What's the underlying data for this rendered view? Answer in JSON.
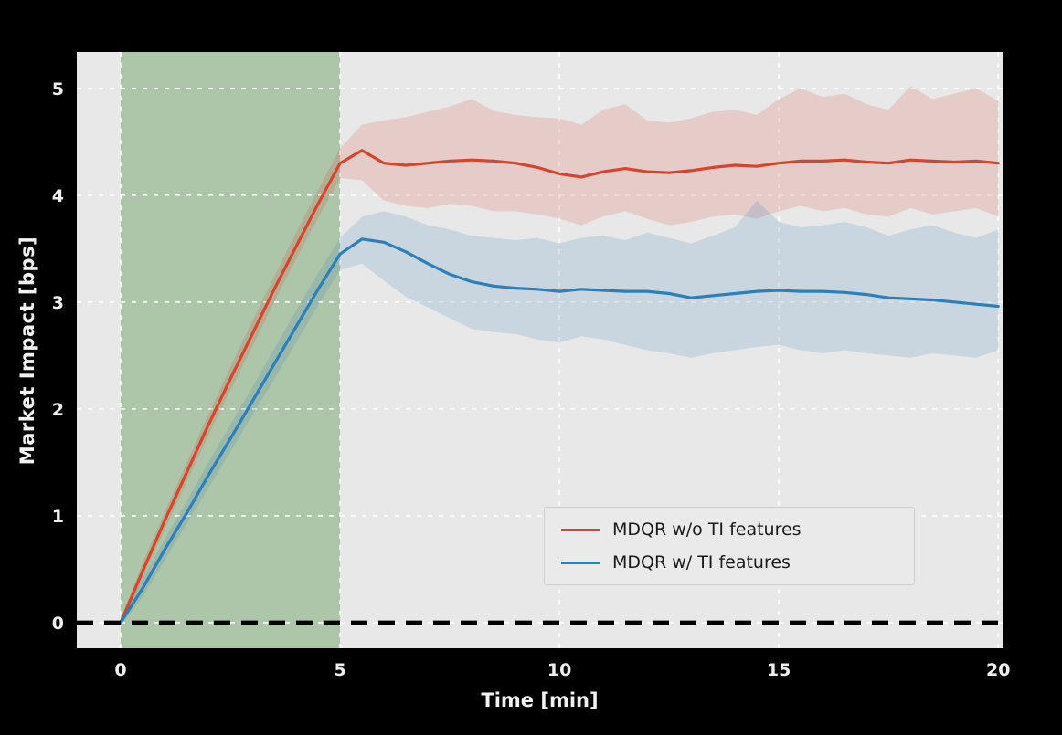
{
  "chart_data": {
    "type": "line",
    "title": "",
    "xlabel": "Time [min]",
    "ylabel": "Market Impact [bps]",
    "xlim": [
      -1,
      20.1
    ],
    "ylim": [
      -0.24,
      5.34
    ],
    "xticks": [
      0,
      5,
      10,
      15,
      20
    ],
    "yticks": [
      0,
      1,
      2,
      3,
      4,
      5
    ],
    "grid": true,
    "grid_color": "#ffffff",
    "plot_bg": "#e8e8e8",
    "fig_bg": "#000000",
    "text_color": "#f0f0f0",
    "legend_position": "lower right",
    "shaded_region": {
      "x0": 0,
      "x1": 5,
      "color": "#4d8b40",
      "opacity": 0.38
    },
    "zero_line": {
      "y": 0,
      "style": "dashed",
      "color": "#000000"
    },
    "x": [
      0,
      0.5,
      1,
      1.5,
      2,
      2.5,
      3,
      3.5,
      4,
      4.5,
      5,
      5.5,
      6,
      6.5,
      7,
      7.5,
      8,
      8.5,
      9,
      9.5,
      10,
      10.5,
      11,
      11.5,
      12,
      12.5,
      13,
      13.5,
      14,
      14.5,
      15,
      15.5,
      16,
      16.5,
      17,
      17.5,
      18,
      18.5,
      19,
      19.5,
      20
    ],
    "series": [
      {
        "name": "MDQR w/o TI features",
        "color": "#d7442e",
        "band_opacity": 0.17,
        "y": [
          0,
          0.48,
          0.95,
          1.4,
          1.85,
          2.28,
          2.7,
          3.12,
          3.52,
          3.92,
          4.3,
          4.42,
          4.3,
          4.28,
          4.3,
          4.32,
          4.33,
          4.32,
          4.3,
          4.26,
          4.2,
          4.17,
          4.22,
          4.25,
          4.22,
          4.21,
          4.23,
          4.26,
          4.28,
          4.27,
          4.3,
          4.32,
          4.32,
          4.33,
          4.31,
          4.3,
          4.33,
          4.32,
          4.31,
          4.32,
          4.3
        ],
        "band_upper": [
          0.03,
          0.56,
          1.03,
          1.49,
          1.95,
          2.39,
          2.82,
          3.24,
          3.65,
          4.05,
          4.44,
          4.66,
          4.7,
          4.73,
          4.78,
          4.83,
          4.9,
          4.79,
          4.75,
          4.73,
          4.72,
          4.66,
          4.8,
          4.85,
          4.7,
          4.68,
          4.72,
          4.78,
          4.8,
          4.75,
          4.9,
          5.0,
          4.92,
          4.95,
          4.85,
          4.8,
          5.02,
          4.9,
          4.95,
          5.0,
          4.88
        ],
        "band_lower": [
          -0.03,
          0.41,
          0.87,
          1.31,
          1.75,
          2.17,
          2.58,
          3.0,
          3.4,
          3.79,
          4.16,
          4.14,
          3.95,
          3.9,
          3.88,
          3.92,
          3.9,
          3.85,
          3.85,
          3.82,
          3.78,
          3.72,
          3.8,
          3.85,
          3.78,
          3.72,
          3.75,
          3.8,
          3.82,
          3.78,
          3.85,
          3.9,
          3.85,
          3.88,
          3.82,
          3.8,
          3.88,
          3.82,
          3.85,
          3.88,
          3.8
        ]
      },
      {
        "name": "MDQR w/ TI features",
        "color": "#2e7eb8",
        "band_opacity": 0.17,
        "y": [
          0,
          0.32,
          0.68,
          1.02,
          1.38,
          1.72,
          2.07,
          2.42,
          2.77,
          3.12,
          3.45,
          3.59,
          3.56,
          3.47,
          3.36,
          3.26,
          3.19,
          3.15,
          3.13,
          3.12,
          3.1,
          3.12,
          3.11,
          3.1,
          3.1,
          3.08,
          3.04,
          3.06,
          3.08,
          3.1,
          3.11,
          3.1,
          3.1,
          3.09,
          3.07,
          3.04,
          3.03,
          3.02,
          3.0,
          2.98,
          2.96
        ],
        "band_upper": [
          0.03,
          0.41,
          0.78,
          1.13,
          1.5,
          1.85,
          2.2,
          2.56,
          2.92,
          3.27,
          3.6,
          3.8,
          3.85,
          3.8,
          3.72,
          3.68,
          3.62,
          3.6,
          3.58,
          3.6,
          3.55,
          3.6,
          3.62,
          3.58,
          3.65,
          3.6,
          3.55,
          3.62,
          3.7,
          3.95,
          3.75,
          3.7,
          3.72,
          3.75,
          3.7,
          3.62,
          3.68,
          3.72,
          3.65,
          3.6,
          3.68
        ],
        "band_lower": [
          -0.03,
          0.24,
          0.58,
          0.92,
          1.26,
          1.6,
          1.94,
          2.28,
          2.62,
          2.97,
          3.3,
          3.36,
          3.2,
          3.05,
          2.95,
          2.85,
          2.75,
          2.72,
          2.7,
          2.65,
          2.62,
          2.68,
          2.65,
          2.6,
          2.55,
          2.52,
          2.48,
          2.52,
          2.55,
          2.58,
          2.6,
          2.55,
          2.52,
          2.55,
          2.52,
          2.5,
          2.48,
          2.52,
          2.5,
          2.48,
          2.55
        ]
      }
    ]
  }
}
